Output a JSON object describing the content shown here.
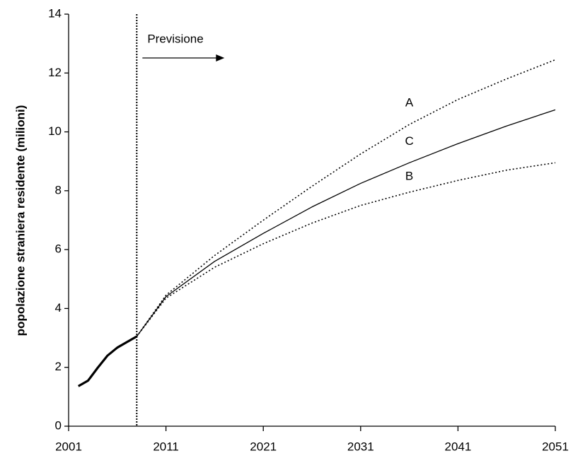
{
  "chart_data": {
    "type": "line",
    "ylabel": "popolazione straniera residente (milioni)",
    "annotation": "Previsione",
    "forecast_start": 2008,
    "xlim": [
      2001,
      2051
    ],
    "xticks": [
      2001,
      2011,
      2021,
      2031,
      2041,
      2051
    ],
    "ylim": [
      0,
      14
    ],
    "yticks": [
      0,
      2,
      4,
      6,
      8,
      10,
      12,
      14
    ],
    "series": [
      {
        "color": "#000000",
        "style": "bold",
        "x": [
          2002,
          2003,
          2004,
          2005,
          2006,
          2007,
          2008
        ],
        "values": [
          1.36,
          1.55,
          1.99,
          2.4,
          2.67,
          2.86,
          3.05
        ]
      },
      {
        "name": "A",
        "color": "#000000",
        "style": "dotted",
        "x": [
          2008,
          2011,
          2016,
          2021,
          2026,
          2031,
          2036,
          2041,
          2046,
          2051
        ],
        "values": [
          3.05,
          4.45,
          5.8,
          7.0,
          8.15,
          9.25,
          10.25,
          11.1,
          11.8,
          12.45
        ]
      },
      {
        "name": "B",
        "color": "#000000",
        "style": "dotted",
        "x": [
          2008,
          2011,
          2016,
          2021,
          2026,
          2031,
          2036,
          2041,
          2046,
          2051
        ],
        "values": [
          3.05,
          4.35,
          5.4,
          6.2,
          6.9,
          7.5,
          7.95,
          8.35,
          8.7,
          8.95
        ]
      },
      {
        "name": "C",
        "color": "#000000",
        "style": "solid",
        "x": [
          2008,
          2011,
          2016,
          2021,
          2026,
          2031,
          2036,
          2041,
          2046,
          2051
        ],
        "values": [
          3.05,
          4.4,
          5.6,
          6.55,
          7.45,
          8.25,
          8.95,
          9.6,
          10.2,
          10.75
        ]
      }
    ]
  }
}
